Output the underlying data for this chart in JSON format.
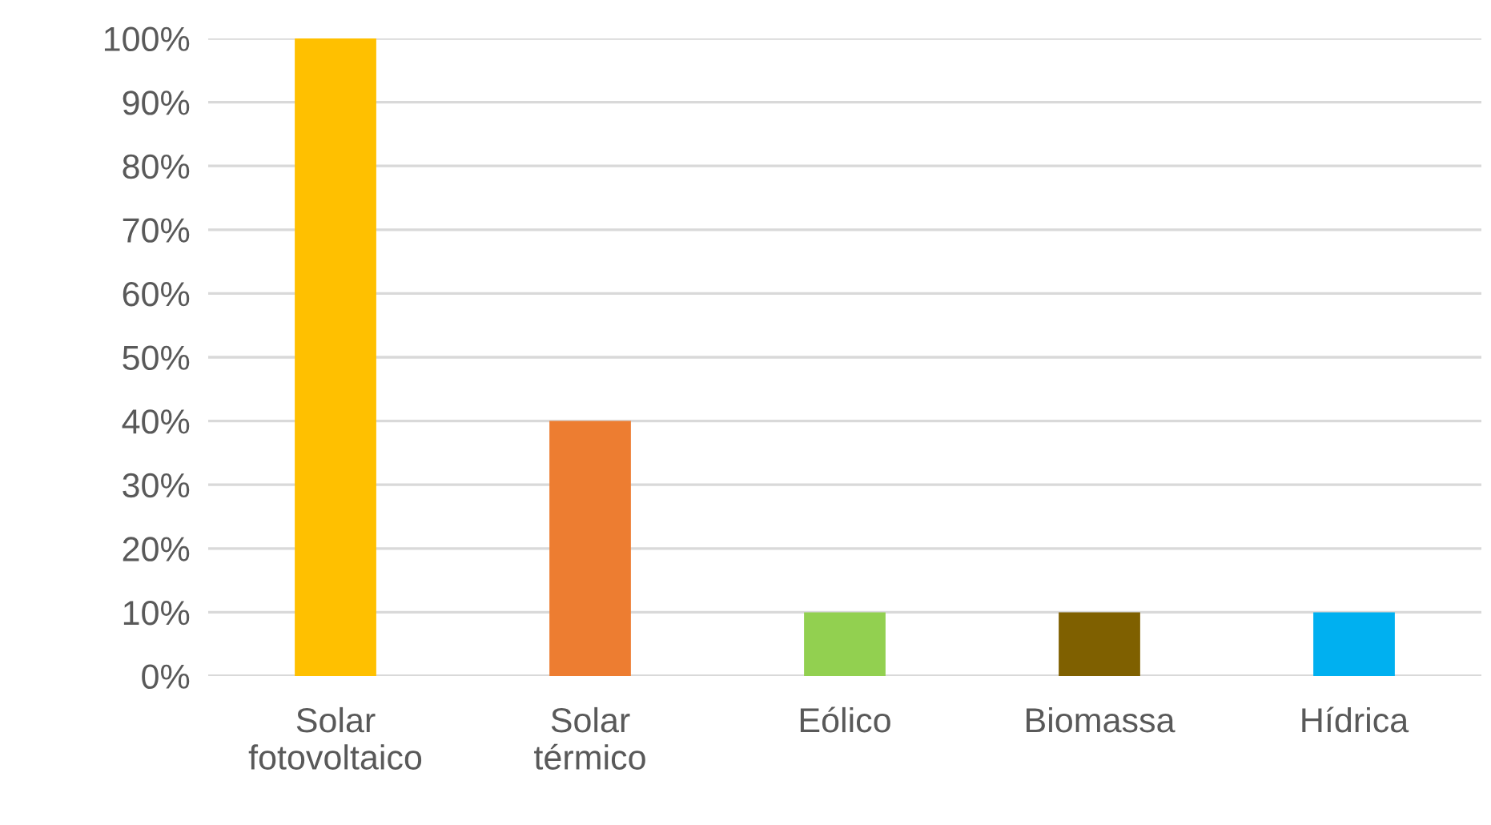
{
  "chart_data": {
    "type": "bar",
    "categories": [
      "Solar fotovoltaico",
      "Solar térmico",
      "Eólico",
      "Biomassa",
      "Hídrica"
    ],
    "values": [
      100,
      40,
      10,
      10,
      10
    ],
    "colors": [
      "#ffc000",
      "#ed7d31",
      "#92d050",
      "#7f6000",
      "#00b0f0"
    ],
    "ylim": [
      0,
      100
    ],
    "yticks": [
      {
        "value": 0,
        "label": "0%"
      },
      {
        "value": 10,
        "label": "10%"
      },
      {
        "value": 20,
        "label": "20%"
      },
      {
        "value": 30,
        "label": "30%"
      },
      {
        "value": 40,
        "label": "40%"
      },
      {
        "value": 50,
        "label": "50%"
      },
      {
        "value": 60,
        "label": "60%"
      },
      {
        "value": 70,
        "label": "70%"
      },
      {
        "value": 80,
        "label": "80%"
      },
      {
        "value": 90,
        "label": "90%"
      },
      {
        "value": 100,
        "label": "100%"
      }
    ],
    "grid": "y",
    "legend": false
  }
}
